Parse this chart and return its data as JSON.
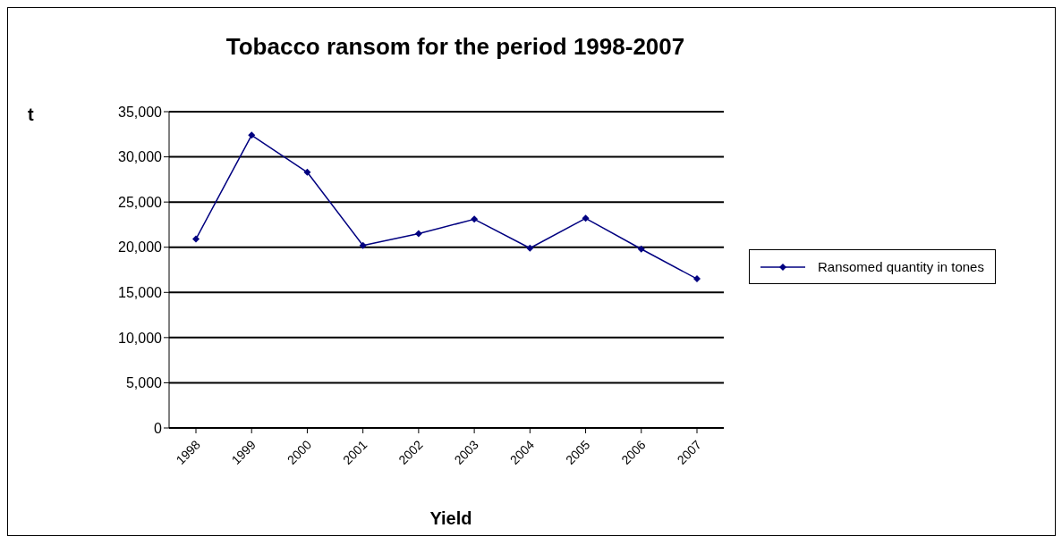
{
  "chart_data": {
    "type": "line",
    "title": "Tobacco ransom for the period 1998-2007",
    "xlabel": "Yield",
    "ylabel": "t",
    "categories": [
      "1998",
      "1999",
      "2000",
      "2001",
      "2002",
      "2003",
      "2004",
      "2005",
      "2006",
      "2007"
    ],
    "series": [
      {
        "name": "Ransomed quantity in tones",
        "color": "#000080",
        "values": [
          20900,
          32400,
          28300,
          20200,
          21500,
          23100,
          19900,
          23200,
          19800,
          16500
        ]
      }
    ],
    "ylim": [
      0,
      35000
    ],
    "yticks": [
      {
        "value": 0,
        "label": "0"
      },
      {
        "value": 5000,
        "label": "5,000"
      },
      {
        "value": 10000,
        "label": "10,000"
      },
      {
        "value": 15000,
        "label": "15,000"
      },
      {
        "value": 20000,
        "label": "20,000"
      },
      {
        "value": 25000,
        "label": "25,000"
      },
      {
        "value": 30000,
        "label": "30,000"
      },
      {
        "value": 35000,
        "label": "35,000"
      }
    ],
    "grid": "y",
    "legend": "right",
    "marker": "diamond",
    "line_style": "solid"
  }
}
